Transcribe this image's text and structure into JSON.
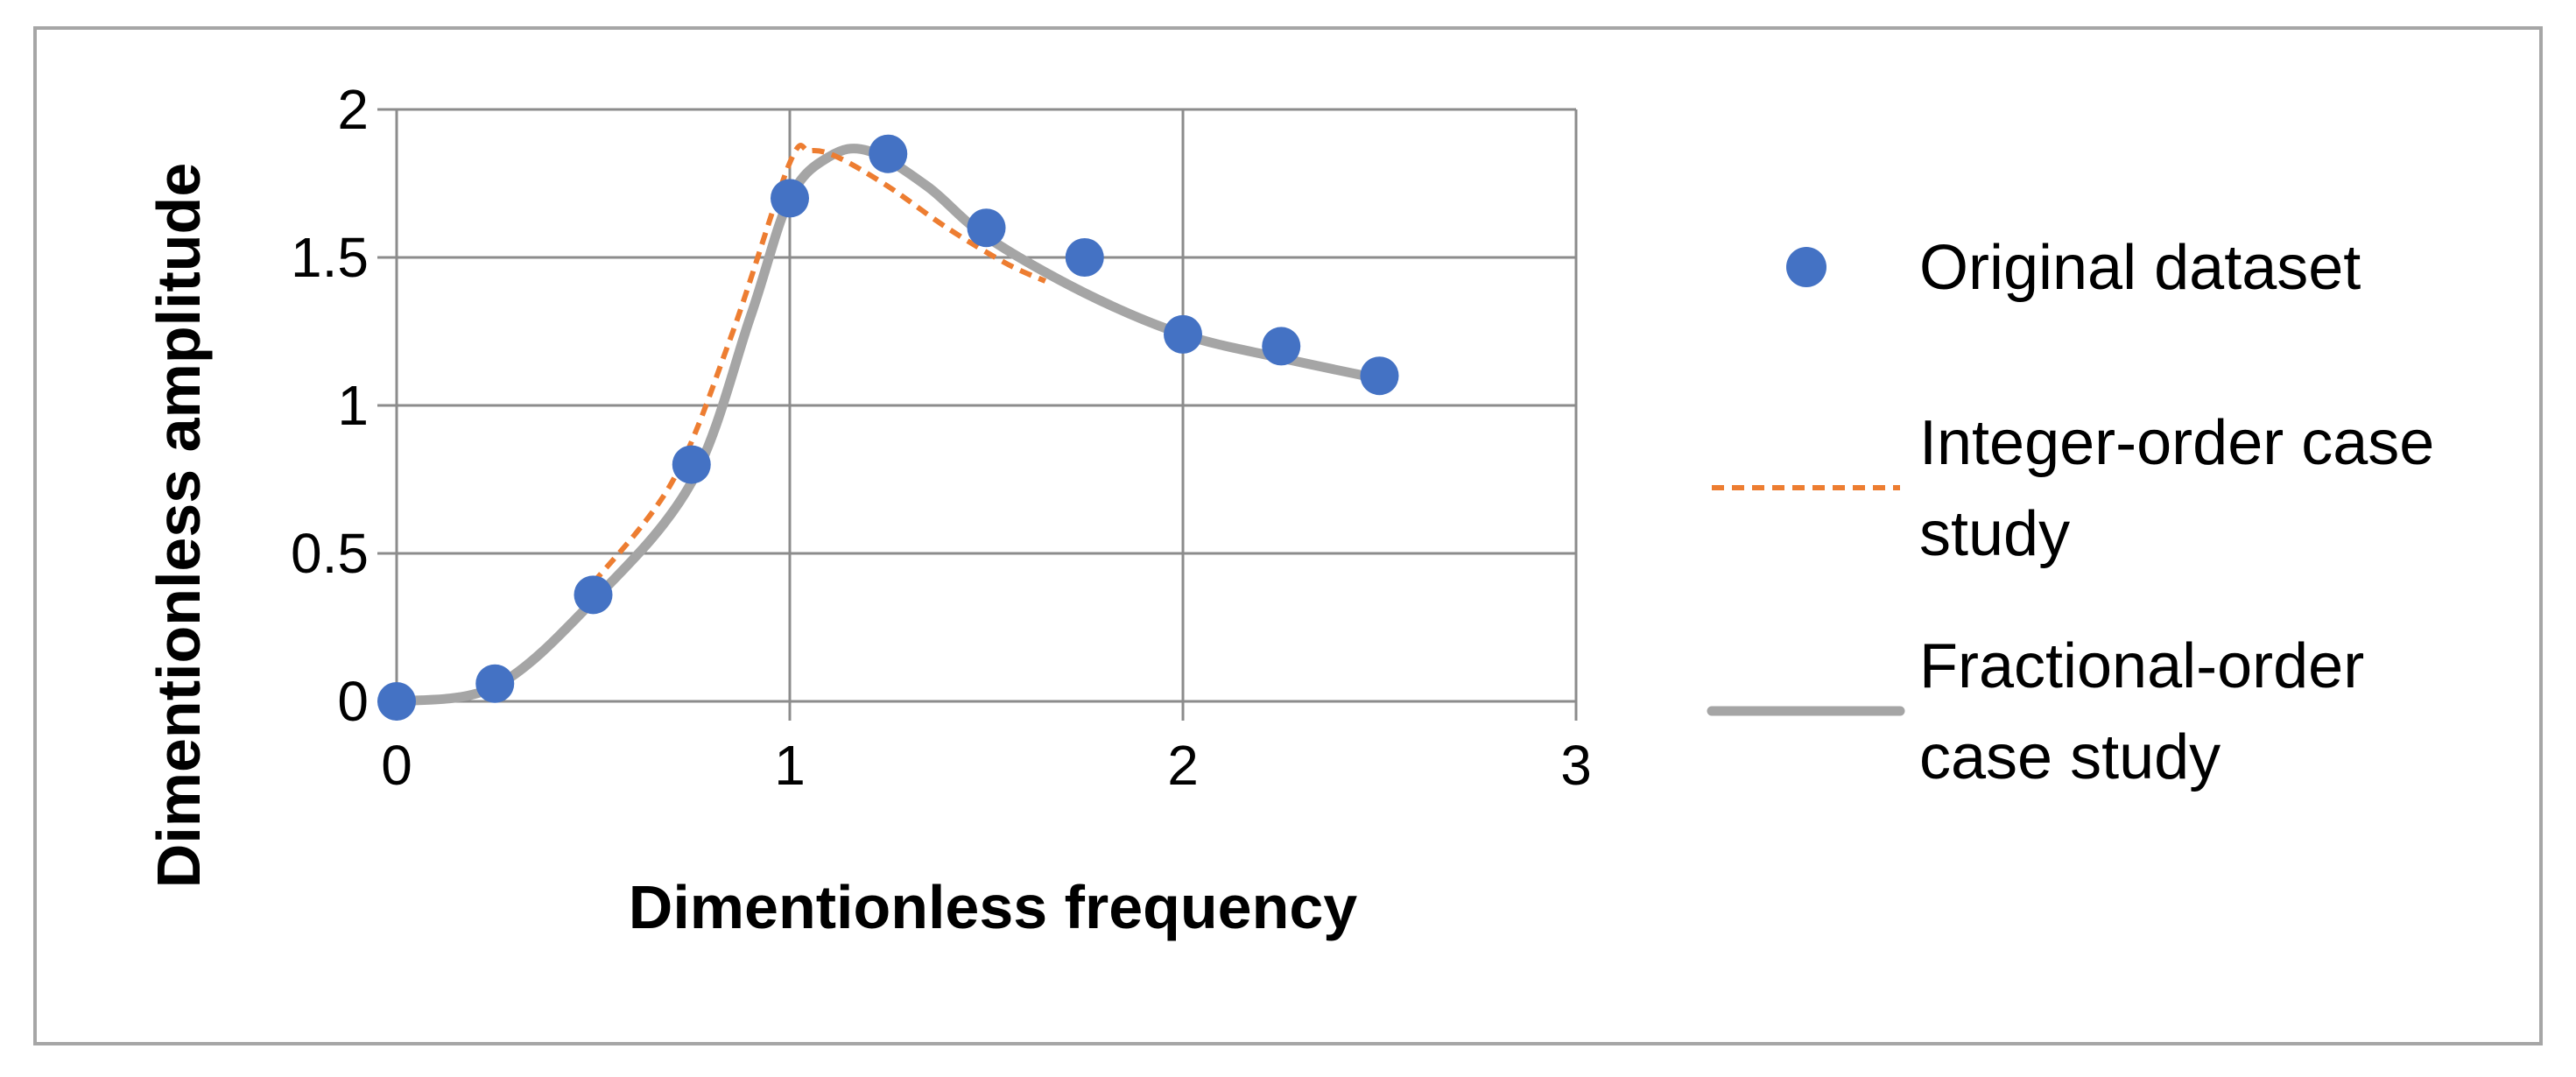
{
  "chart_data": {
    "type": "scatter",
    "xlabel": "Dimentionless frequency",
    "ylabel": "Dimentionless amplitude",
    "xlim": [
      0,
      3
    ],
    "ylim": [
      0,
      2
    ],
    "x_ticks": [
      "0",
      "1",
      "2",
      "3"
    ],
    "y_ticks": [
      "0",
      "0.5",
      "1",
      "1.5",
      "2"
    ],
    "grid": true,
    "legend_position": "right",
    "series": [
      {
        "name": "Original dataset",
        "kind": "markers",
        "color": "#4472C4",
        "x": [
          0,
          0.25,
          0.5,
          0.75,
          1.0,
          1.25,
          1.5,
          1.75,
          2.0,
          2.25,
          2.5
        ],
        "y": [
          0,
          0.06,
          0.36,
          0.8,
          1.7,
          1.85,
          1.6,
          1.5,
          1.24,
          1.2,
          1.1
        ]
      },
      {
        "name": "Fractional-order case study",
        "kind": "line",
        "color": "#A5A5A5",
        "x": [
          0,
          0.25,
          0.5,
          0.75,
          0.9,
          1.0,
          1.1,
          1.2,
          1.35,
          1.5,
          1.75,
          2.0,
          2.25,
          2.5
        ],
        "y": [
          0,
          0.05,
          0.34,
          0.74,
          1.3,
          1.7,
          1.84,
          1.86,
          1.74,
          1.57,
          1.38,
          1.24,
          1.16,
          1.09
        ]
      },
      {
        "name": "Integer-order case study",
        "kind": "dashed-line",
        "color": "#ED7D31",
        "x": [
          0.5,
          0.7,
          0.85,
          1.0,
          1.05,
          1.12,
          1.25,
          1.4,
          1.55,
          1.65
        ],
        "y": [
          0.4,
          0.74,
          1.23,
          1.82,
          1.86,
          1.84,
          1.74,
          1.6,
          1.48,
          1.42
        ]
      }
    ],
    "legend": [
      {
        "name_lines": [
          "Original dataset"
        ],
        "kind": "markers",
        "color": "#4472C4"
      },
      {
        "name_lines": [
          "Integer-order case",
          "study"
        ],
        "kind": "dashed-line",
        "color": "#ED7D31"
      },
      {
        "name_lines": [
          "Fractional-order",
          "case study"
        ],
        "kind": "line",
        "color": "#A5A5A5"
      }
    ]
  }
}
